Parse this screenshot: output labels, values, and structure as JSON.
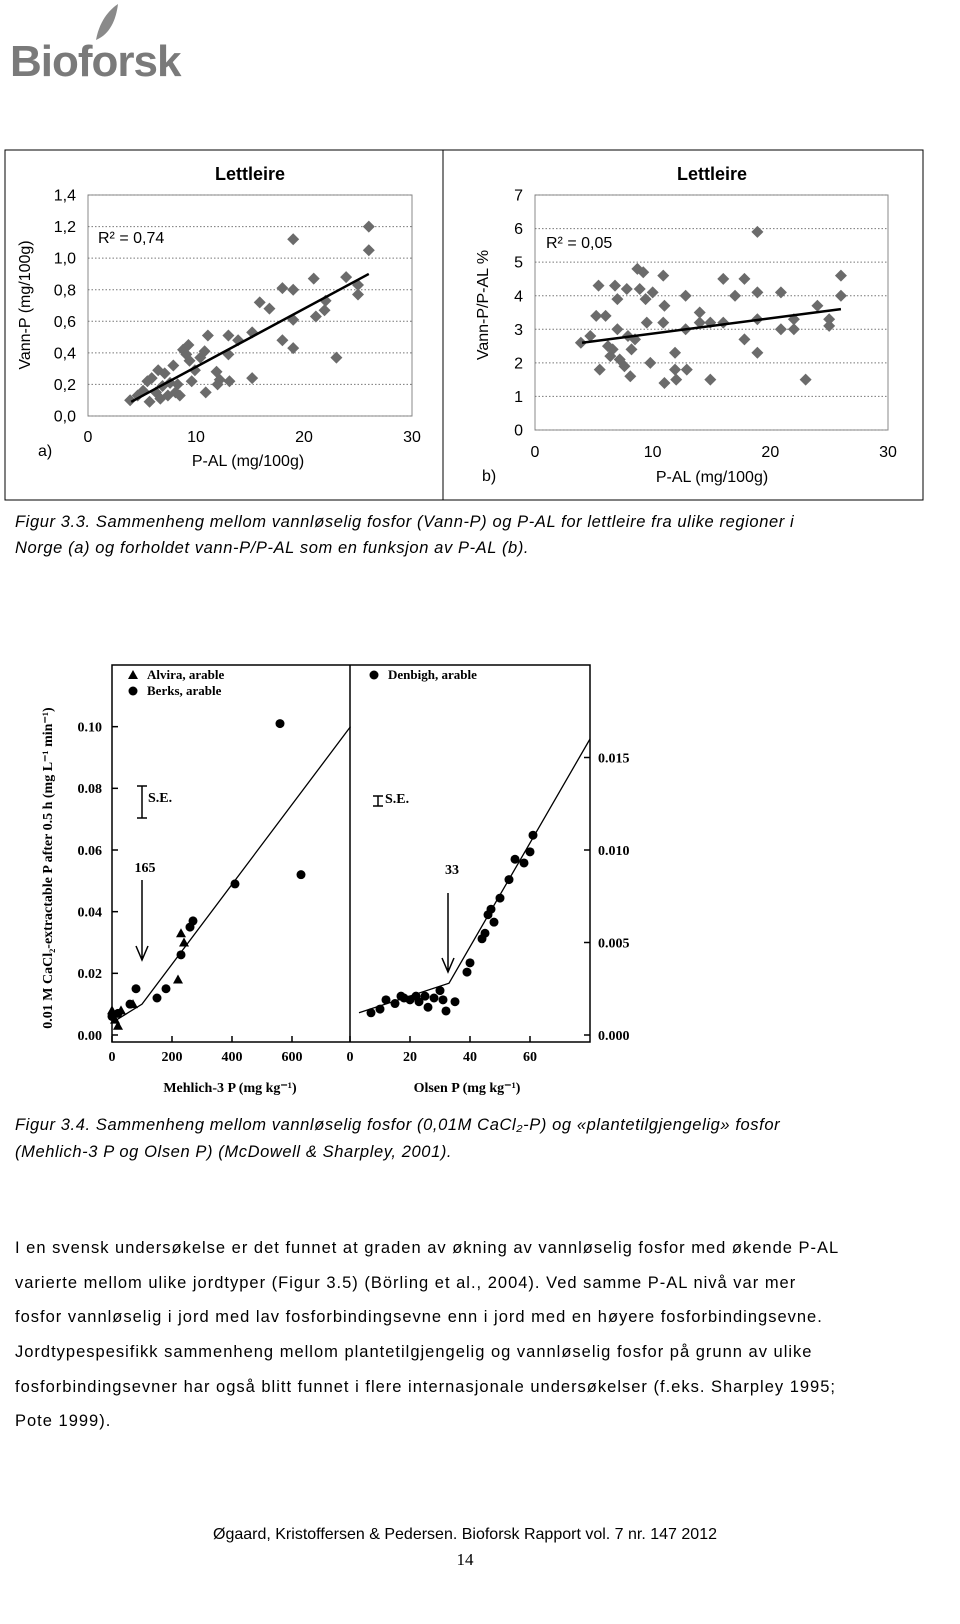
{
  "logo": {
    "text": "Bioforsk"
  },
  "chart_data": [
    {
      "type": "scatter",
      "title": "Lettleire",
      "panel_label": "a)",
      "annotation": "R² = 0,74",
      "x_label": "P-AL (mg/100g)",
      "y_label": "Vann-P (mg/100g)",
      "xlim": [
        0,
        30
      ],
      "ylim": [
        0,
        1.4
      ],
      "xticks": [
        0,
        10,
        20,
        30
      ],
      "yticks": [
        {
          "value": 0,
          "label": "0,0"
        },
        {
          "value": 0.2,
          "label": "0,2"
        },
        {
          "value": 0.4,
          "label": "0,4"
        },
        {
          "value": 0.6,
          "label": "0,6"
        },
        {
          "value": 0.8,
          "label": "0,8"
        },
        {
          "value": 1.0,
          "label": "1,0"
        },
        {
          "value": 1.2,
          "label": "1,2"
        },
        {
          "value": 1.4,
          "label": "1,4"
        }
      ],
      "grid": true,
      "series": [
        {
          "color": "#6b6b6b",
          "marker": "diamond",
          "x": [
            3.9,
            4.6,
            5.1,
            5.5,
            5.7,
            5.9,
            6.3,
            6.5,
            6.7,
            6.9,
            7.1,
            7.4,
            7.6,
            7.9,
            8.1,
            8.3,
            8.5,
            8.8,
            9.1,
            9.3,
            9.4,
            9.6,
            9.9,
            10.4,
            10.8,
            10.9,
            11.1,
            11.9,
            12,
            12.2,
            13,
            13,
            13.1,
            13.9,
            15.2,
            15.2,
            15.9,
            16.8,
            18,
            18,
            19,
            19,
            19,
            19,
            20.9,
            21.1,
            21.9,
            22,
            23,
            23.9,
            25,
            25,
            26,
            26
          ],
          "values": [
            0.1,
            0.13,
            0.16,
            0.22,
            0.09,
            0.24,
            0.15,
            0.29,
            0.11,
            0.19,
            0.27,
            0.13,
            0.21,
            0.32,
            0.15,
            0.2,
            0.13,
            0.42,
            0.39,
            0.45,
            0.35,
            0.22,
            0.29,
            0.37,
            0.41,
            0.15,
            0.51,
            0.28,
            0.2,
            0.23,
            0.39,
            0.51,
            0.22,
            0.48,
            0.24,
            0.53,
            0.72,
            0.68,
            0.81,
            0.48,
            1.12,
            0.8,
            0.61,
            0.43,
            0.87,
            0.63,
            0.67,
            0.73,
            0.37,
            0.88,
            0.83,
            0.77,
            1.2,
            1.05
          ]
        }
      ],
      "trendline": {
        "color": "#000000",
        "x": [
          4,
          26
        ],
        "values": [
          0.09,
          0.9
        ]
      }
    },
    {
      "type": "scatter",
      "title": "Lettleire",
      "panel_label": "b)",
      "annotation": "R² = 0,05",
      "x_label": "P-AL (mg/100g)",
      "y_label": "Vann-P/P-AL %",
      "xlim": [
        0,
        30
      ],
      "ylim": [
        0,
        7
      ],
      "xticks": [
        0,
        10,
        20,
        30
      ],
      "yticks": [
        0,
        1,
        2,
        3,
        4,
        5,
        6,
        7
      ],
      "grid": true,
      "series": [
        {
          "color": "#6b6b6b",
          "marker": "diamond",
          "x": [
            3.9,
            4.7,
            5.4,
            5.5,
            5.2,
            6,
            6.2,
            6.4,
            6.6,
            6.8,
            7,
            7,
            7.2,
            7.6,
            7.8,
            7.9,
            8.1,
            8.2,
            8.5,
            8.7,
            8.9,
            9.2,
            9.4,
            9.5,
            9.8,
            10,
            10.9,
            10.9,
            11,
            11,
            11.9,
            11.9,
            12,
            12.8,
            12.8,
            12.9,
            14,
            14,
            14.9,
            14.9,
            16,
            16,
            17,
            17.8,
            17.8,
            18.9,
            18.9,
            18.9,
            18.9,
            20.9,
            20.9,
            22,
            22,
            23,
            24,
            25,
            25,
            26,
            26
          ],
          "values": [
            2.6,
            2.8,
            4.3,
            1.8,
            3.4,
            3.4,
            2.5,
            2.2,
            2.4,
            4.3,
            3.9,
            3,
            2.1,
            1.9,
            4.2,
            2.8,
            1.6,
            2.4,
            2.7,
            4.8,
            4.2,
            4.7,
            3.9,
            3.2,
            2,
            4.1,
            4.6,
            3.2,
            1.4,
            3.7,
            2.3,
            1.8,
            1.5,
            4,
            3,
            1.8,
            3.5,
            3.2,
            3.2,
            1.5,
            4.5,
            3.2,
            4,
            4.5,
            2.7,
            5.9,
            4.1,
            3.3,
            2.3,
            4.1,
            3,
            3.3,
            3,
            1.5,
            3.7,
            3.3,
            3.1,
            4.6,
            4
          ]
        }
      ],
      "trendline": {
        "color": "#000000",
        "x": [
          4,
          26
        ],
        "values": [
          2.6,
          3.6
        ]
      }
    },
    {
      "type": "scatter",
      "x_label": "Mehlich-3 P (mg kg⁻¹)",
      "y_label": "0.01 M CaCl₂-extractable P after 0.5 h (mg L⁻¹ min⁻¹)",
      "annotation": "S.E.",
      "arrow_label": "165",
      "xlim": [
        0,
        800
      ],
      "ylim": [
        0,
        0.12
      ],
      "xticks": [
        0,
        200,
        400,
        600
      ],
      "yticks": [
        {
          "value": 0,
          "label": "0.00"
        },
        {
          "value": 0.02,
          "label": "0.02"
        },
        {
          "value": 0.04,
          "label": "0.04"
        },
        {
          "value": 0.06,
          "label": "0.06"
        },
        {
          "value": 0.08,
          "label": "0.08"
        },
        {
          "value": 0.1,
          "label": "0.10"
        }
      ],
      "grid": false,
      "series": [
        {
          "name": "Alvira, arable",
          "color": "#000000",
          "marker": "triangle",
          "x": [
            0,
            10,
            20,
            30,
            70,
            230,
            240,
            220
          ],
          "values": [
            0.008,
            0.005,
            0.003,
            0.008,
            0.01,
            0.033,
            0.03,
            0.018
          ]
        },
        {
          "name": "Berks, arable",
          "color": "#000000",
          "marker": "circle",
          "x": [
            0,
            20,
            60,
            80,
            150,
            180,
            230,
            260,
            270,
            410,
            560,
            630
          ],
          "values": [
            0.006,
            0.007,
            0.01,
            0.015,
            0.012,
            0.015,
            0.026,
            0.035,
            0.037,
            0.049,
            0.101,
            0.052
          ]
        }
      ],
      "trendline": {
        "color": "#000000",
        "x": [
          0,
          100,
          795
        ],
        "values": [
          0.004,
          0.01,
          0.1
        ]
      }
    },
    {
      "type": "scatter",
      "x_label": "Olsen P (mg kg⁻¹)",
      "annotation": "S.E.",
      "arrow_label": "33",
      "xlim": [
        0,
        80
      ],
      "ylim": [
        0,
        0.02
      ],
      "xticks": [
        0,
        20,
        40,
        60
      ],
      "yticks": [
        {
          "value": 0,
          "label": "0.000"
        },
        {
          "value": 0.005,
          "label": "0.005"
        },
        {
          "value": 0.01,
          "label": "0.010"
        },
        {
          "value": 0.015,
          "label": "0.015"
        }
      ],
      "y_axis_side": "right",
      "grid": false,
      "series": [
        {
          "name": "Denbigh, arable",
          "color": "#000000",
          "marker": "circle",
          "x": [
            7,
            10,
            12,
            15,
            17,
            18,
            20,
            22,
            23,
            25,
            26,
            28,
            30,
            31,
            32,
            35,
            39,
            40,
            44,
            45,
            46,
            47,
            48,
            50,
            53,
            55,
            58,
            60,
            61
          ],
          "values": [
            0.0012,
            0.0014,
            0.0019,
            0.0017,
            0.0021,
            0.002,
            0.0019,
            0.0021,
            0.0018,
            0.0021,
            0.0015,
            0.002,
            0.0024,
            0.0019,
            0.0013,
            0.0018,
            0.0034,
            0.0039,
            0.0052,
            0.0055,
            0.0065,
            0.0068,
            0.0061,
            0.0074,
            0.0084,
            0.0095,
            0.0093,
            0.0099,
            0.0108
          ]
        }
      ],
      "trendline": {
        "color": "#000000",
        "x": [
          3,
          33,
          80
        ],
        "values": [
          0.0012,
          0.0028,
          0.016
        ]
      }
    }
  ],
  "captions": [
    [
      "Figur 3.3. Sammenheng mellom vannløselig fosfor (Vann-P) og P-AL for lettleire fra ulike regioner i",
      "Norge (a) og forholdet vann-P/P-AL som en funksjon av P-AL (b)."
    ],
    [
      "Figur 3.4. Sammenheng mellom vannløselig fosfor (0,01M CaCl₂-P) og «plantetilgjengelig» fosfor",
      "(Mehlich-3 P og Olsen P) (McDowell & Sharpley, 2001)."
    ]
  ],
  "paragraph": [
    "I en svensk undersøkelse er det funnet at graden av økning av vannløselig fosfor med økende P-AL",
    "varierte mellom ulike jordtyper (Figur 3.5) (Börling et al., 2004). Ved samme P-AL nivå var mer",
    "fosfor vannløselig i jord med lav fosforbindingsevne enn i jord med en høyere fosforbindingsevne.",
    "Jordtypespesifikk sammenheng mellom plantetilgjengelig og vannløselig fosfor på grunn av ulike",
    "fosforbindingsevner har også blitt funnet i flere internasjonale undersøkelser (f.eks. Sharpley 1995;",
    "Pote 1999)."
  ],
  "footer": "Øgaard, Kristoffersen & Pedersen. Bioforsk Rapport vol. 7 nr. 147 2012",
  "page_number": "14"
}
